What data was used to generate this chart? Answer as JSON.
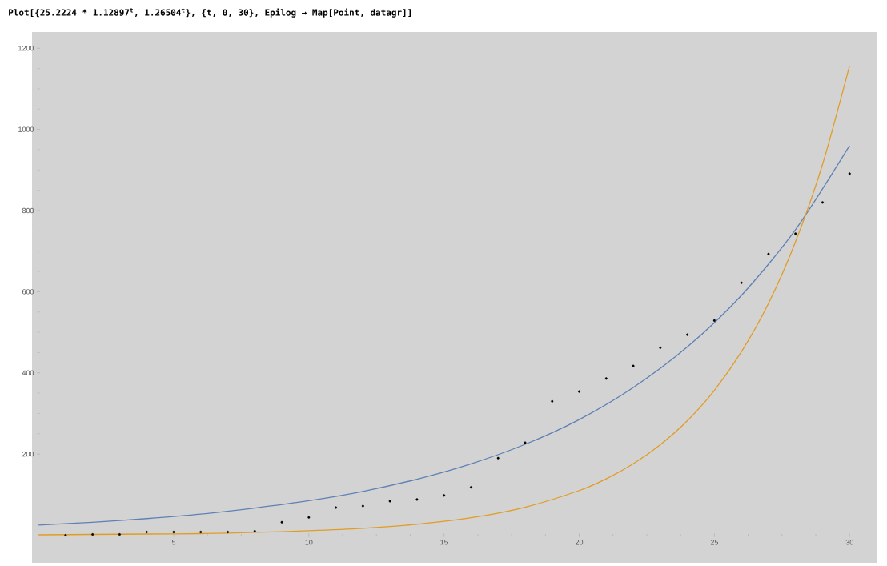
{
  "chart_data": {
    "type": "line",
    "title": "Plot[{25.2224 * 1.12897$^{t}$, 1.26504$^{t}$}, {t, 0, 30}, Epilog → Map[Point, datagr]]",
    "xlim": [
      -0.24,
      31
    ],
    "ylim": [
      -68,
      1240
    ],
    "xticks": [
      5,
      10,
      15,
      20,
      25,
      30
    ],
    "yticks": [
      200,
      400,
      600,
      800,
      1000,
      1200
    ],
    "grid": false,
    "series": [
      {
        "color": "#5e81b5",
        "marker": "none",
        "x": [
          0,
          2,
          4,
          6,
          8,
          10,
          12,
          14,
          16,
          18,
          20,
          22,
          24,
          26,
          28,
          30
        ],
        "values": [
          25,
          32,
          41,
          52,
          67,
          85,
          108,
          138,
          176,
          224,
          285,
          364,
          464,
          591,
          753,
          960
        ]
      },
      {
        "color": "#e19c24",
        "marker": "none",
        "x": [
          0,
          2,
          4,
          6,
          8,
          10,
          12,
          14,
          16,
          18,
          20,
          21,
          22,
          23,
          24,
          25,
          26,
          27,
          28,
          29,
          30
        ],
        "values": [
          1,
          2,
          3,
          4,
          7,
          11,
          17,
          27,
          43,
          69,
          110,
          139,
          176,
          223,
          282,
          357,
          452,
          571,
          723,
          914,
          1157
        ]
      },
      {
        "type": "scatter",
        "color": "#000000",
        "marker": "circle",
        "x": [
          1,
          2,
          3,
          4,
          5,
          6,
          7,
          8,
          9,
          10,
          11,
          12,
          13,
          14,
          15,
          16,
          17,
          18,
          19,
          20,
          21,
          22,
          23,
          24,
          25,
          26,
          27,
          28,
          29,
          30
        ],
        "values": [
          0,
          2,
          2,
          8,
          8,
          8,
          8,
          10,
          32,
          44,
          68,
          72,
          84,
          88,
          98,
          118,
          190,
          228,
          330,
          354,
          386,
          417,
          462,
          494,
          529,
          622,
          693,
          743,
          820,
          891
        ]
      }
    ]
  }
}
